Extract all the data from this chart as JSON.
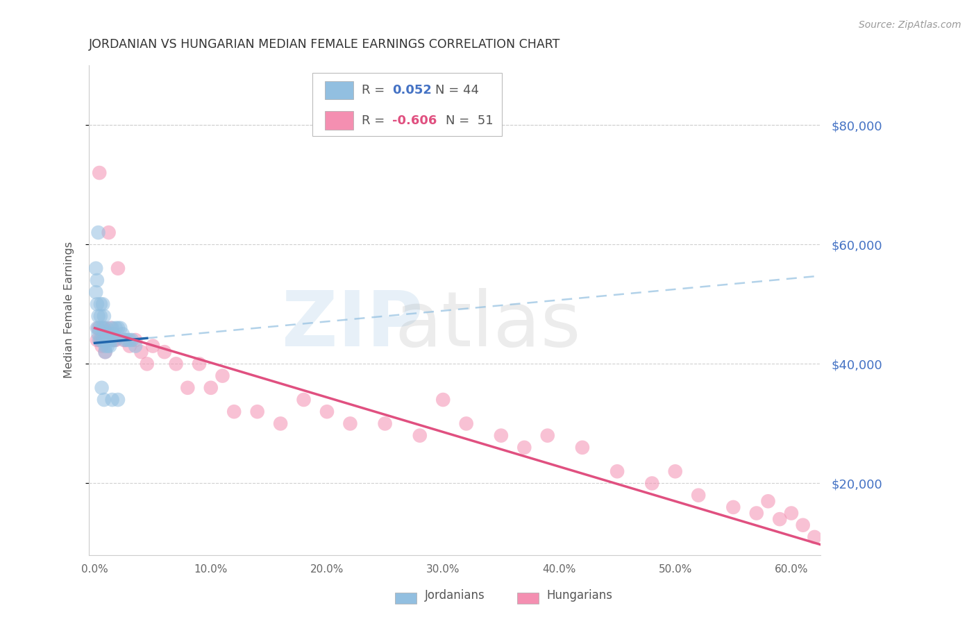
{
  "title": "JORDANIAN VS HUNGARIAN MEDIAN FEMALE EARNINGS CORRELATION CHART",
  "source": "Source: ZipAtlas.com",
  "ylabel": "Median Female Earnings",
  "xlabel_ticks": [
    "0.0%",
    "10.0%",
    "20.0%",
    "30.0%",
    "40.0%",
    "50.0%",
    "60.0%"
  ],
  "xlabel_vals": [
    0.0,
    0.1,
    0.2,
    0.3,
    0.4,
    0.5,
    0.6
  ],
  "ytick_labels": [
    "$20,000",
    "$40,000",
    "$60,000",
    "$80,000"
  ],
  "ytick_vals": [
    20000,
    40000,
    60000,
    80000
  ],
  "xlim": [
    -0.005,
    0.625
  ],
  "ylim": [
    8000,
    90000
  ],
  "blue_color": "#92bfe0",
  "pink_color": "#f48fb1",
  "blue_line_color": "#2166ac",
  "blue_dash_color": "#92bfe0",
  "pink_line_color": "#e05080",
  "axis_label_color": "#4472c4",
  "grid_color": "#d0d0d0",
  "title_color": "#333333",
  "jordanians_x": [
    0.001,
    0.001,
    0.002,
    0.002,
    0.002,
    0.003,
    0.003,
    0.003,
    0.004,
    0.004,
    0.005,
    0.005,
    0.006,
    0.006,
    0.007,
    0.007,
    0.008,
    0.008,
    0.009,
    0.009,
    0.01,
    0.01,
    0.011,
    0.011,
    0.012,
    0.012,
    0.013,
    0.014,
    0.015,
    0.016,
    0.017,
    0.018,
    0.02,
    0.022,
    0.024,
    0.026,
    0.028,
    0.03,
    0.032,
    0.035,
    0.006,
    0.008,
    0.015,
    0.02
  ],
  "jordanians_y": [
    56000,
    52000,
    54000,
    50000,
    46000,
    48000,
    45000,
    62000,
    46000,
    44000,
    50000,
    48000,
    46000,
    44000,
    50000,
    46000,
    48000,
    44000,
    43000,
    42000,
    46000,
    44000,
    45000,
    43000,
    45000,
    44000,
    43000,
    44000,
    46000,
    45000,
    44000,
    46000,
    46000,
    46000,
    45000,
    44000,
    44000,
    44000,
    44000,
    43000,
    36000,
    34000,
    34000,
    34000
  ],
  "hungarians_x": [
    0.002,
    0.003,
    0.004,
    0.005,
    0.006,
    0.007,
    0.008,
    0.009,
    0.01,
    0.012,
    0.014,
    0.016,
    0.018,
    0.02,
    0.025,
    0.03,
    0.035,
    0.04,
    0.045,
    0.05,
    0.06,
    0.07,
    0.08,
    0.09,
    0.1,
    0.11,
    0.12,
    0.14,
    0.16,
    0.18,
    0.2,
    0.22,
    0.25,
    0.28,
    0.3,
    0.32,
    0.35,
    0.37,
    0.39,
    0.42,
    0.45,
    0.48,
    0.5,
    0.52,
    0.55,
    0.57,
    0.58,
    0.59,
    0.6,
    0.61,
    0.62
  ],
  "hungarians_y": [
    44000,
    46000,
    72000,
    44000,
    43000,
    44000,
    46000,
    42000,
    44000,
    62000,
    46000,
    44000,
    44000,
    56000,
    44000,
    43000,
    44000,
    42000,
    40000,
    43000,
    42000,
    40000,
    36000,
    40000,
    36000,
    38000,
    32000,
    32000,
    30000,
    34000,
    32000,
    30000,
    30000,
    28000,
    34000,
    30000,
    28000,
    26000,
    28000,
    26000,
    22000,
    20000,
    22000,
    18000,
    16000,
    15000,
    17000,
    14000,
    15000,
    13000,
    11000
  ],
  "blue_line_x0": 0.0,
  "blue_line_x_solid_end": 0.045,
  "blue_line_y0": 43500,
  "blue_line_slope": 18000,
  "pink_line_x0": 0.0,
  "pink_line_y0": 46000,
  "pink_line_slope": -58000
}
